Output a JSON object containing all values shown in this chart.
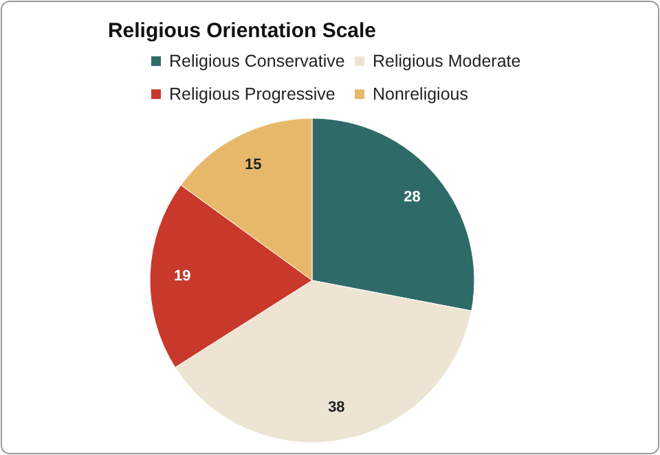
{
  "chart_data": {
    "type": "pie",
    "title": "Religious Orientation Scale",
    "categories": [
      "Religious Conservative",
      "Religious Moderate",
      "Religious Progressive",
      "Nonreligious"
    ],
    "values": [
      28,
      38,
      19,
      15
    ],
    "colors": [
      "#2e6b68",
      "#ede4d3",
      "#c8392b",
      "#e8b86a"
    ],
    "data_labels": true,
    "legend": "top"
  }
}
